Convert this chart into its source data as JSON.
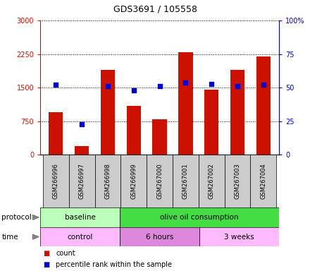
{
  "title": "GDS3691 / 105558",
  "samples": [
    "GSM266996",
    "GSM266997",
    "GSM266998",
    "GSM266999",
    "GSM267000",
    "GSM267001",
    "GSM267002",
    "GSM267003",
    "GSM267004"
  ],
  "counts": [
    950,
    200,
    1900,
    1100,
    800,
    2300,
    1450,
    1900,
    2200
  ],
  "percentiles": [
    52,
    23,
    51,
    48,
    51,
    54,
    53,
    51,
    52
  ],
  "bar_color": "#cc1100",
  "dot_color": "#0000cc",
  "ylim_left": [
    0,
    3000
  ],
  "ylim_right": [
    0,
    100
  ],
  "yticks_left": [
    0,
    750,
    1500,
    2250,
    3000
  ],
  "ytick_labels_left": [
    "0",
    "750",
    "1500",
    "2250",
    "3000"
  ],
  "yticks_right": [
    0,
    25,
    50,
    75,
    100
  ],
  "ytick_labels_right": [
    "0",
    "25",
    "50",
    "75",
    "100%"
  ],
  "protocol_groups": [
    {
      "label": "baseline",
      "start": 0,
      "end": 3,
      "color": "#bbffbb"
    },
    {
      "label": "olive oil consumption",
      "start": 3,
      "end": 9,
      "color": "#44dd44"
    }
  ],
  "time_groups": [
    {
      "label": "control",
      "start": 0,
      "end": 3,
      "color": "#ffbbff"
    },
    {
      "label": "6 hours",
      "start": 3,
      "end": 6,
      "color": "#dd88dd"
    },
    {
      "label": "3 weeks",
      "start": 6,
      "end": 9,
      "color": "#ffbbff"
    }
  ],
  "grid_color": "black",
  "background_color": "#ffffff",
  "sample_box_color": "#cccccc"
}
